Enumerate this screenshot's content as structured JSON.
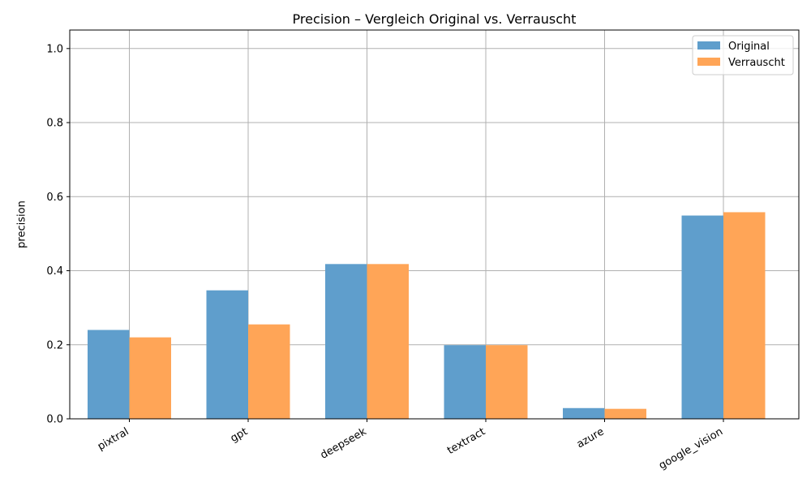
{
  "chart_data": {
    "type": "bar",
    "title": "Precision – Vergleich Original vs. Verrauscht",
    "xlabel": "",
    "ylabel": "precision",
    "categories": [
      "pixtral",
      "gpt",
      "deepseek",
      "textract",
      "azure",
      "google_vision"
    ],
    "series": [
      {
        "name": "Original",
        "values": [
          0.24,
          0.347,
          0.418,
          0.199,
          0.029,
          0.549
        ],
        "color": "#5f9ecc"
      },
      {
        "name": "Verrauscht",
        "values": [
          0.22,
          0.255,
          0.418,
          0.199,
          0.027,
          0.558
        ],
        "color": "#ffa557"
      }
    ],
    "ylim": [
      0,
      1.05
    ],
    "yticks": [
      0.0,
      0.2,
      0.4,
      0.6,
      0.8,
      1.0
    ],
    "ytick_labels": [
      "0.0",
      "0.2",
      "0.4",
      "0.6",
      "0.8",
      "1.0"
    ],
    "grid": true,
    "legend_position": "top-right"
  }
}
